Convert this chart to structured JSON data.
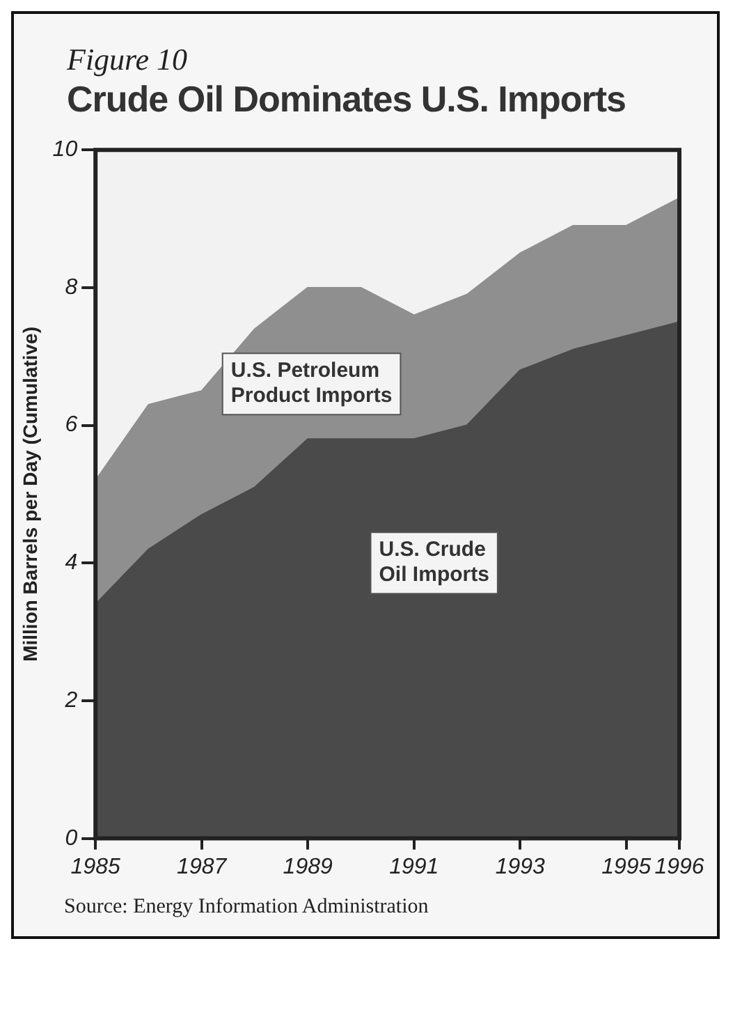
{
  "chart_data": {
    "type": "area",
    "subtitle": "Figure 10",
    "title": "Crude Oil Dominates U.S. Imports",
    "ylabel": "Million Barrels per Day (Cumulative)",
    "x": [
      1985,
      1986,
      1987,
      1988,
      1989,
      1990,
      1991,
      1992,
      1993,
      1994,
      1995,
      1996
    ],
    "stacked": true,
    "series": [
      {
        "name": "U.S. Crude Oil Imports",
        "color": "#4a4a4a",
        "values": [
          3.4,
          4.2,
          4.7,
          5.1,
          5.8,
          5.8,
          5.8,
          6.0,
          6.8,
          7.1,
          7.3,
          7.5
        ]
      },
      {
        "name": "U.S. Petroleum Product Imports",
        "color": "#8f8f8f",
        "values": [
          1.8,
          2.1,
          1.8,
          2.3,
          2.2,
          2.2,
          1.8,
          1.9,
          1.7,
          1.8,
          1.6,
          1.8
        ]
      }
    ],
    "xlim": [
      1985,
      1996
    ],
    "xticks": [
      1985,
      1987,
      1989,
      1991,
      1993,
      1995,
      1996
    ],
    "ylim": [
      0,
      10
    ],
    "yticks": [
      0,
      2,
      4,
      6,
      8,
      10
    ],
    "legend": false,
    "annotations": [
      "Source: Energy Information Administration"
    ]
  }
}
